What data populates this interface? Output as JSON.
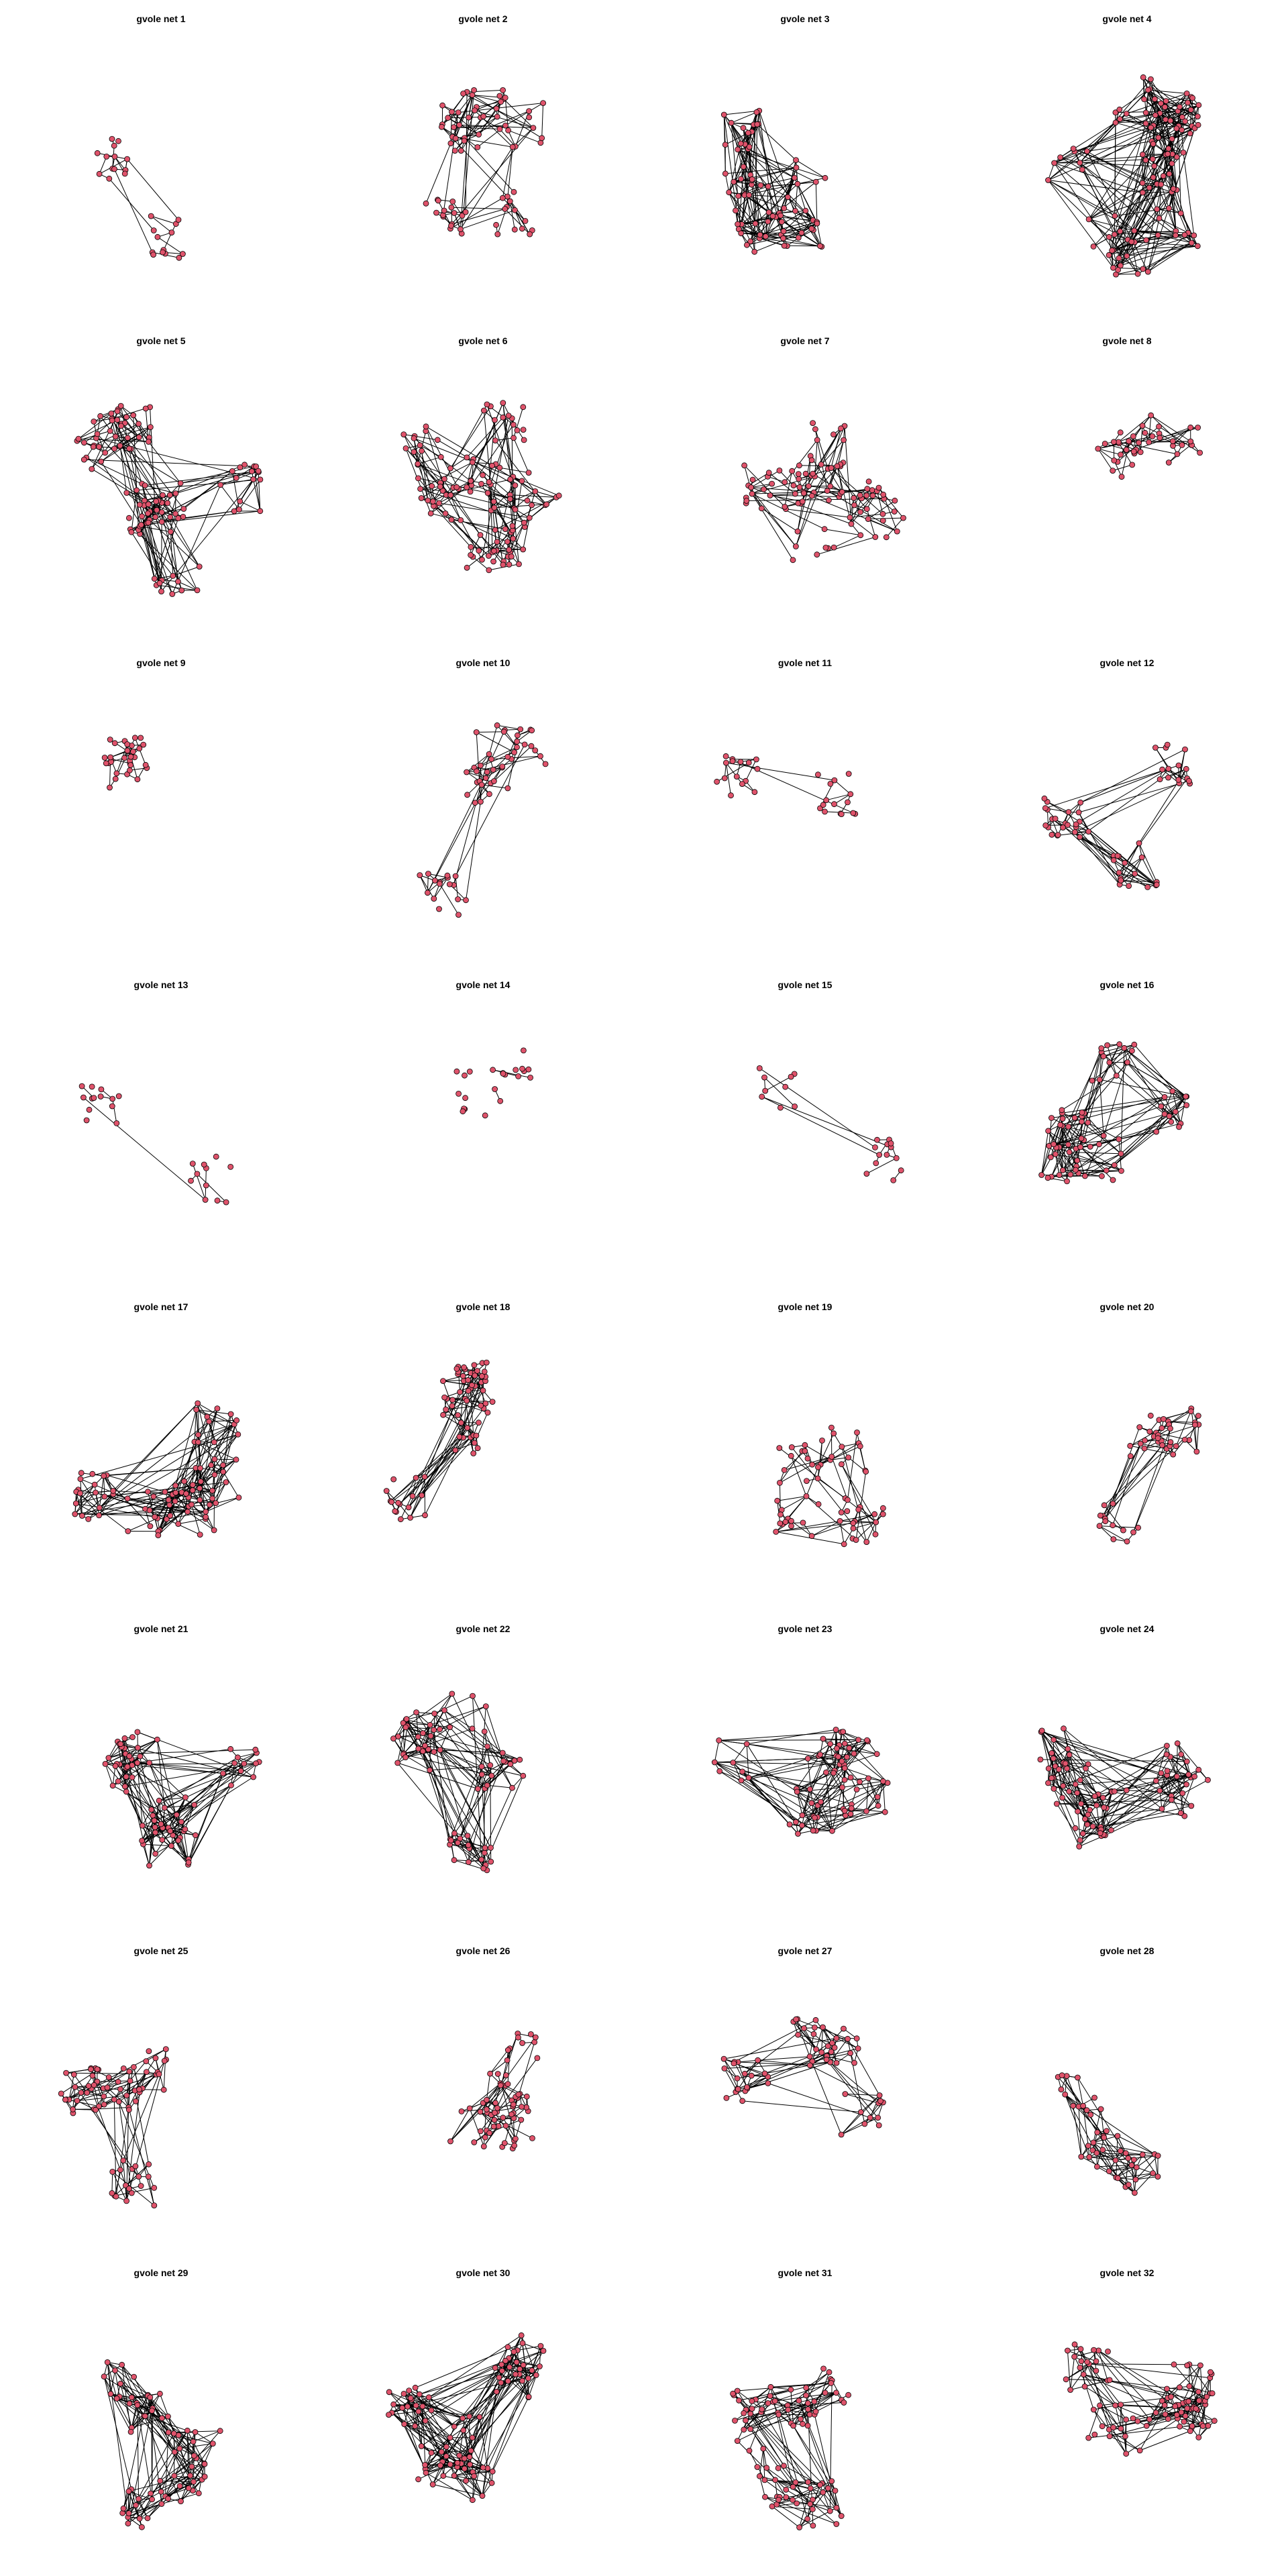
{
  "figure": {
    "background": "#ffffff",
    "node_fill": "#df536b",
    "node_stroke": "#000000",
    "edge_color": "#000000"
  },
  "panels": [
    {
      "title": "gvole net 1",
      "nodes": 26,
      "edges": 28,
      "seed": 1
    },
    {
      "title": "gvole net 2",
      "nodes": 75,
      "edges": 120,
      "seed": 2
    },
    {
      "title": "gvole net 3",
      "nodes": 75,
      "edges": 260,
      "seed": 3
    },
    {
      "title": "gvole net 4",
      "nodes": 110,
      "edges": 380,
      "seed": 4
    },
    {
      "title": "gvole net 5",
      "nodes": 110,
      "edges": 210,
      "seed": 5
    },
    {
      "title": "gvole net 6",
      "nodes": 120,
      "edges": 190,
      "seed": 6
    },
    {
      "title": "gvole net 7",
      "nodes": 95,
      "edges": 120,
      "seed": 7
    },
    {
      "title": "gvole net 8",
      "nodes": 40,
      "edges": 70,
      "seed": 8
    },
    {
      "title": "gvole net 9",
      "nodes": 32,
      "edges": 40,
      "seed": 9
    },
    {
      "title": "gvole net 10",
      "nodes": 55,
      "edges": 80,
      "seed": 10
    },
    {
      "title": "gvole net 11",
      "nodes": 30,
      "edges": 26,
      "seed": 11
    },
    {
      "title": "gvole net 12",
      "nodes": 55,
      "edges": 100,
      "seed": 12
    },
    {
      "title": "gvole net 13",
      "nodes": 24,
      "edges": 10,
      "seed": 13
    },
    {
      "title": "gvole net 14",
      "nodes": 22,
      "edges": 3,
      "seed": 14
    },
    {
      "title": "gvole net 15",
      "nodes": 22,
      "edges": 16,
      "seed": 15
    },
    {
      "title": "gvole net 16",
      "nodes": 75,
      "edges": 200,
      "seed": 16
    },
    {
      "title": "gvole net 17",
      "nodes": 85,
      "edges": 260,
      "seed": 17
    },
    {
      "title": "gvole net 18",
      "nodes": 70,
      "edges": 150,
      "seed": 18
    },
    {
      "title": "gvole net 19",
      "nodes": 60,
      "edges": 90,
      "seed": 19
    },
    {
      "title": "gvole net 20",
      "nodes": 48,
      "edges": 70,
      "seed": 20
    },
    {
      "title": "gvole net 21",
      "nodes": 75,
      "edges": 240,
      "seed": 21
    },
    {
      "title": "gvole net 22",
      "nodes": 70,
      "edges": 200,
      "seed": 22
    },
    {
      "title": "gvole net 23",
      "nodes": 70,
      "edges": 210,
      "seed": 23
    },
    {
      "title": "gvole net 24",
      "nodes": 85,
      "edges": 230,
      "seed": 24
    },
    {
      "title": "gvole net 25",
      "nodes": 75,
      "edges": 130,
      "seed": 25
    },
    {
      "title": "gvole net 26",
      "nodes": 65,
      "edges": 95,
      "seed": 26
    },
    {
      "title": "gvole net 27",
      "nodes": 60,
      "edges": 110,
      "seed": 27
    },
    {
      "title": "gvole net 28",
      "nodes": 45,
      "edges": 120,
      "seed": 28
    },
    {
      "title": "gvole net 29",
      "nodes": 70,
      "edges": 220,
      "seed": 29
    },
    {
      "title": "gvole net 30",
      "nodes": 90,
      "edges": 300,
      "seed": 30
    },
    {
      "title": "gvole net 31",
      "nodes": 90,
      "edges": 160,
      "seed": 31
    },
    {
      "title": "gvole net 32",
      "nodes": 90,
      "edges": 190,
      "seed": 32
    }
  ]
}
